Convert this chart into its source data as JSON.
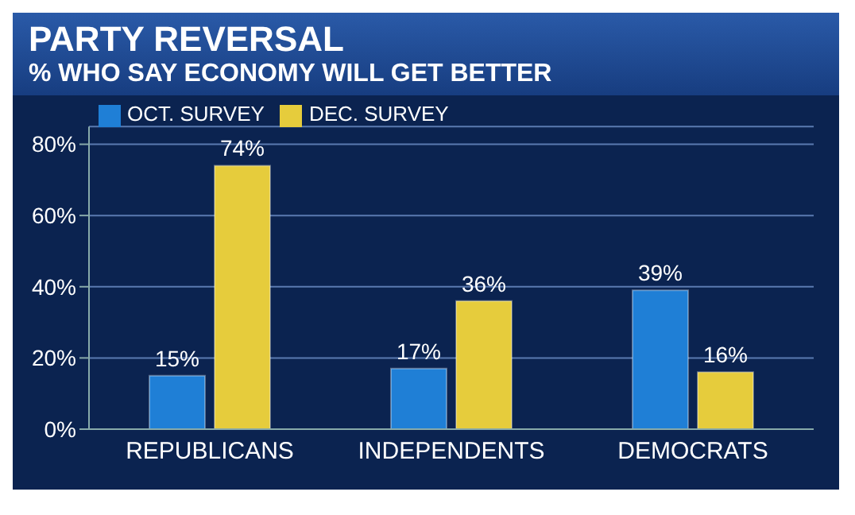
{
  "chart_data": {
    "type": "bar",
    "title": "PARTY REVERSAL",
    "subtitle": "% WHO SAY ECONOMY WILL GET BETTER",
    "categories": [
      "REPUBLICANS",
      "INDEPENDENTS",
      "DEMOCRATS"
    ],
    "series": [
      {
        "name": "OCT. SURVEY",
        "color": "#1f7fd6",
        "values": [
          15,
          17,
          39
        ],
        "value_labels": [
          "15%",
          "17%",
          "39%"
        ]
      },
      {
        "name": "DEC. SURVEY",
        "color": "#e6cc3c",
        "values": [
          74,
          36,
          16
        ],
        "value_labels": [
          "74%",
          "36%",
          "16%"
        ]
      }
    ],
    "ylim": [
      0,
      85
    ],
    "yticks": [
      {
        "value": 0,
        "label": "0%"
      },
      {
        "value": 20,
        "label": "20%"
      },
      {
        "value": 40,
        "label": "40%"
      },
      {
        "value": 60,
        "label": "60%"
      },
      {
        "value": 80,
        "label": "80%"
      }
    ],
    "grid": "y",
    "legend": "top left"
  }
}
